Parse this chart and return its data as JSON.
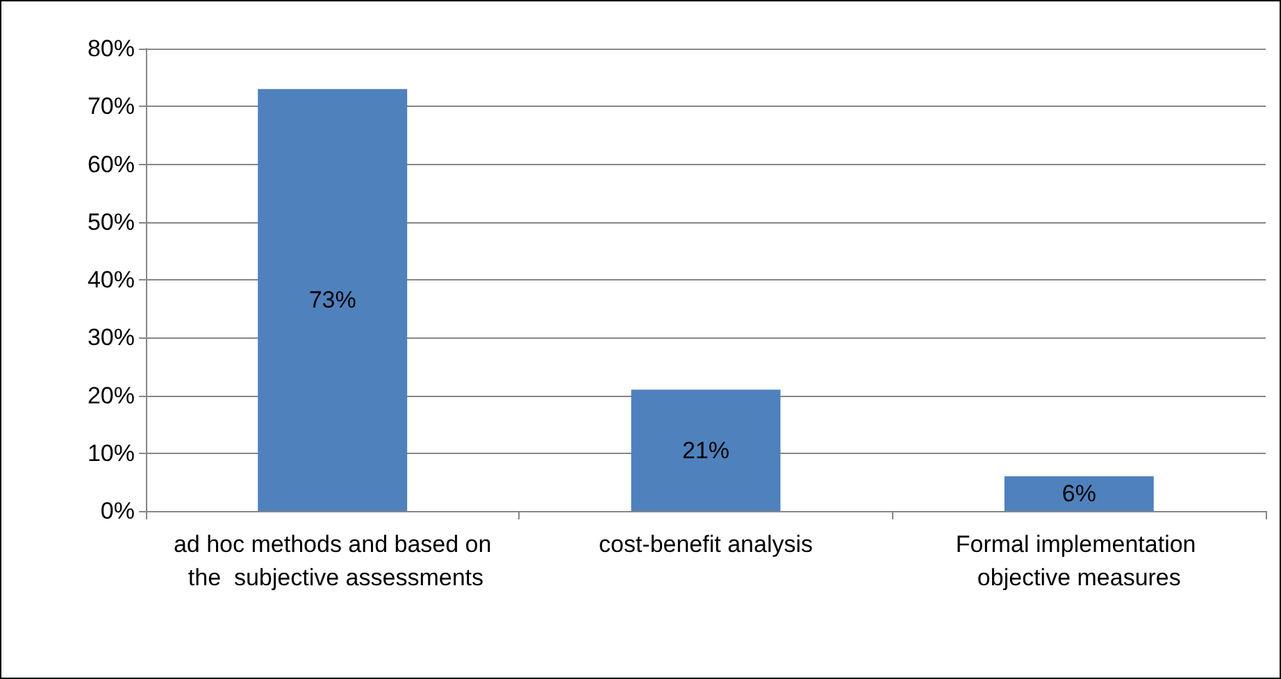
{
  "chart_data": {
    "type": "bar",
    "categories": [
      "ad hoc methods and based on the  subjective assessments",
      "cost-benefit analysis",
      "Formal implementation objective measures"
    ],
    "values": [
      73,
      21,
      6
    ],
    "color": "#4f81bd",
    "value_labels": [
      "73%",
      "21%",
      "6%"
    ],
    "ylim": [
      0,
      80
    ],
    "yticks": [
      {
        "value": 0,
        "label": "0%"
      },
      {
        "value": 10,
        "label": "10%"
      },
      {
        "value": 20,
        "label": "20%"
      },
      {
        "value": 30,
        "label": "30%"
      },
      {
        "value": 40,
        "label": "40%"
      },
      {
        "value": 50,
        "label": "50%"
      },
      {
        "value": 60,
        "label": "60%"
      },
      {
        "value": 70,
        "label": "70%"
      },
      {
        "value": 80,
        "label": "80%"
      }
    ],
    "grid": "y"
  }
}
